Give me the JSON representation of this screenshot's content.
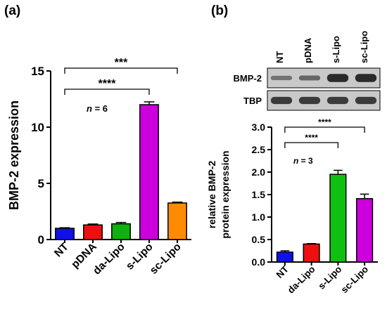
{
  "panels": {
    "a": {
      "label": "(a)"
    },
    "b": {
      "label": "(b)"
    }
  },
  "chart_data": [
    {
      "id": "a",
      "type": "bar",
      "categories": [
        "NT",
        "pDNA",
        "da-Lipo",
        "s-Lipo",
        "sc-Lipo"
      ],
      "values": [
        1.0,
        1.3,
        1.4,
        12.0,
        3.25
      ],
      "errors": [
        0.05,
        0.08,
        0.12,
        0.25,
        0.08
      ],
      "colors": [
        "#1010ee",
        "#ee1010",
        "#10b010",
        "#cc00dd",
        "#ff8c00"
      ],
      "ylabel": "BMP-2 expression",
      "xlabel": "",
      "ylim": [
        0,
        15
      ],
      "yticks": [
        "0",
        "5",
        "10",
        "15"
      ],
      "annotation": {
        "n_label": "n",
        "n_value": " = 6"
      },
      "significance": [
        {
          "from": "NT",
          "to": "sc-Lipo",
          "label": "***"
        },
        {
          "from": "NT",
          "to": "s-Lipo",
          "label": "****"
        }
      ]
    },
    {
      "id": "b",
      "type": "bar",
      "categories": [
        "NT",
        "da-Lipo",
        "s-Lipo",
        "sc-Lipo"
      ],
      "values": [
        0.22,
        0.4,
        1.95,
        1.41
      ],
      "errors": [
        0.03,
        0.01,
        0.09,
        0.1
      ],
      "colors": [
        "#1010ee",
        "#ee1010",
        "#10c010",
        "#cc00dd"
      ],
      "ylabel": [
        "relative BMP-2",
        "protein expression"
      ],
      "xlabel": "",
      "ylim": [
        0,
        3.0
      ],
      "yticks": [
        "0.0",
        "0.5",
        "1.0",
        "1.5",
        "2.0",
        "2.5",
        "3.0"
      ],
      "annotation": {
        "n_label": "n",
        "n_value": " = 3"
      },
      "significance": [
        {
          "from": "NT",
          "to": "sc-Lipo",
          "label": "****"
        },
        {
          "from": "NT",
          "to": "s-Lipo",
          "label": "****"
        }
      ]
    }
  ],
  "blot": {
    "lanes": [
      "NT",
      "pDNA",
      "s-Lipo",
      "sc-Lipo"
    ],
    "rows": [
      {
        "label": "BMP-2",
        "intensity": [
          0.35,
          0.45,
          0.95,
          0.95
        ]
      },
      {
        "label": "TBP",
        "intensity": [
          0.8,
          0.8,
          0.8,
          0.8
        ]
      }
    ]
  }
}
